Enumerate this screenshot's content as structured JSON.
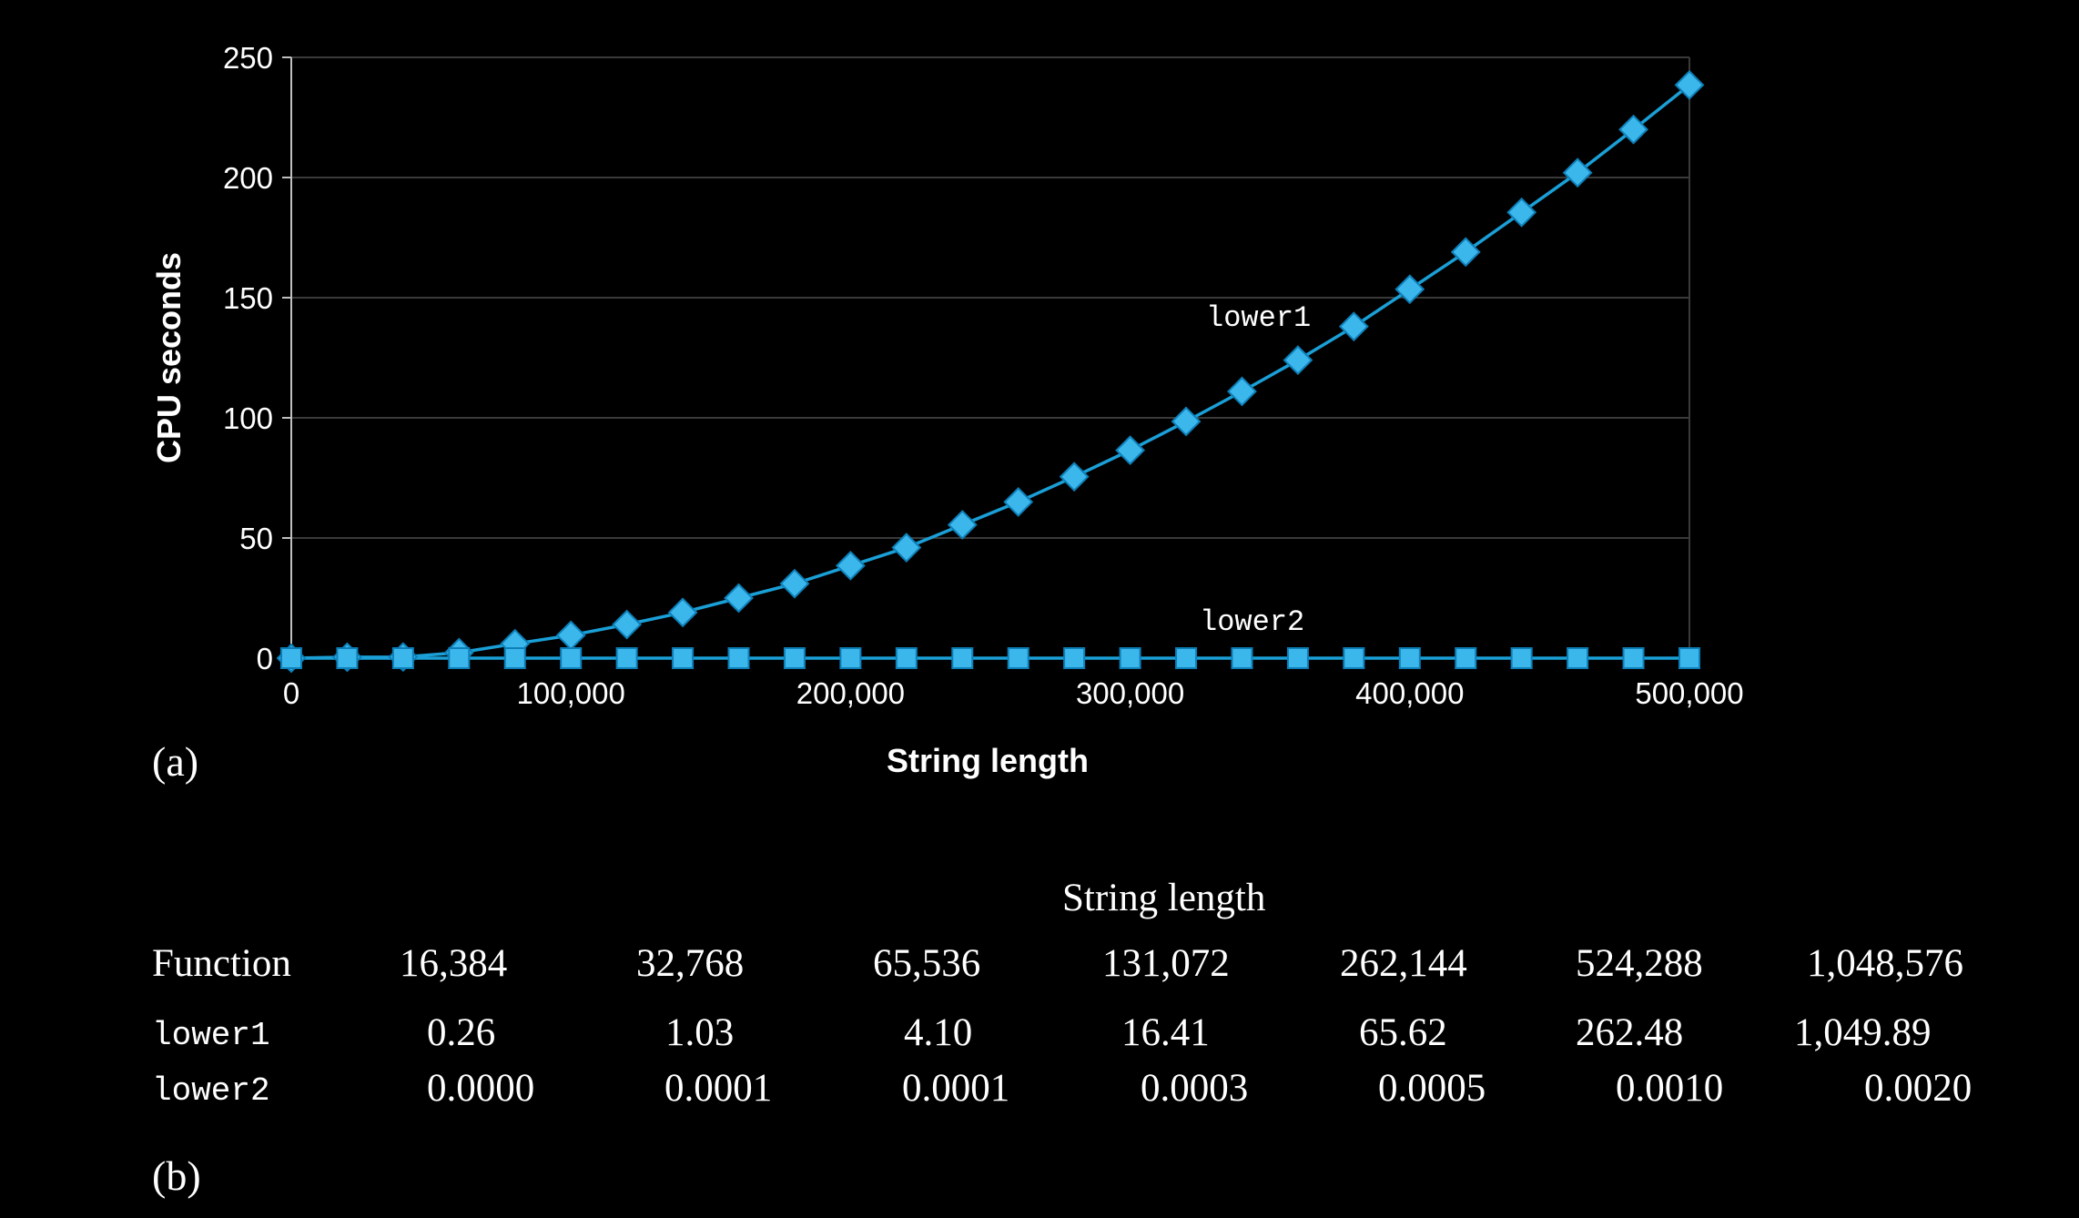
{
  "chart_data": {
    "type": "line",
    "panel_label": "(a)",
    "xlabel": "String length",
    "ylabel": "CPU seconds",
    "xlim": [
      0,
      500000
    ],
    "ylim": [
      0,
      250
    ],
    "x_ticks": [
      0,
      100000,
      200000,
      300000,
      400000,
      500000
    ],
    "x_tick_labels": [
      "0",
      "100,000",
      "200,000",
      "300,000",
      "400,000",
      "500,000"
    ],
    "y_ticks": [
      0,
      50,
      100,
      150,
      200,
      250
    ],
    "y_tick_labels": [
      "0",
      "50",
      "100",
      "150",
      "200",
      "250"
    ],
    "grid": "horizontal",
    "x": [
      0,
      20000,
      40000,
      60000,
      80000,
      100000,
      120000,
      140000,
      160000,
      180000,
      200000,
      220000,
      240000,
      260000,
      280000,
      300000,
      320000,
      340000,
      360000,
      380000,
      400000,
      420000,
      440000,
      460000,
      480000,
      500000
    ],
    "series": [
      {
        "name": "lower1",
        "marker": "diamond",
        "values": [
          0,
          0.4,
          0.5,
          2.3,
          6,
          9.5,
          14,
          19,
          25,
          31,
          38.5,
          46,
          55.5,
          65,
          75.5,
          86.5,
          98.5,
          111,
          124,
          138,
          153.5,
          169,
          185.5,
          202,
          220,
          238.5
        ]
      },
      {
        "name": "lower2",
        "marker": "square",
        "values": [
          0,
          0,
          0,
          0,
          0,
          0,
          0,
          0,
          0,
          0,
          0,
          0,
          0,
          0,
          0,
          0,
          0,
          0,
          0,
          0,
          0,
          0,
          0,
          0,
          0,
          0
        ]
      }
    ]
  },
  "table": {
    "panel_label": "(b)",
    "group_header": "String length",
    "function_header": "Function",
    "columns": [
      "16,384",
      "32,768",
      "65,536",
      "131,072",
      "262,144",
      "524,288",
      "1,048,576"
    ],
    "rows": [
      {
        "name": "lower1",
        "values": [
          "0.26",
          "1.03",
          "4.10",
          "16.41",
          "65.62",
          "262.48",
          "1,049.89"
        ]
      },
      {
        "name": "lower2",
        "values": [
          "0.0000",
          "0.0001",
          "0.0001",
          "0.0003",
          "0.0005",
          "0.0010",
          "0.0020"
        ]
      }
    ]
  },
  "colors": {
    "background": "#000000",
    "line": "#1a9fd6",
    "marker_fill": "#3cb7ec",
    "marker_stroke": "#0d7fb8",
    "grid": "#3a3a3a",
    "axis": "#bfbfbf",
    "text": "#ffffff"
  }
}
